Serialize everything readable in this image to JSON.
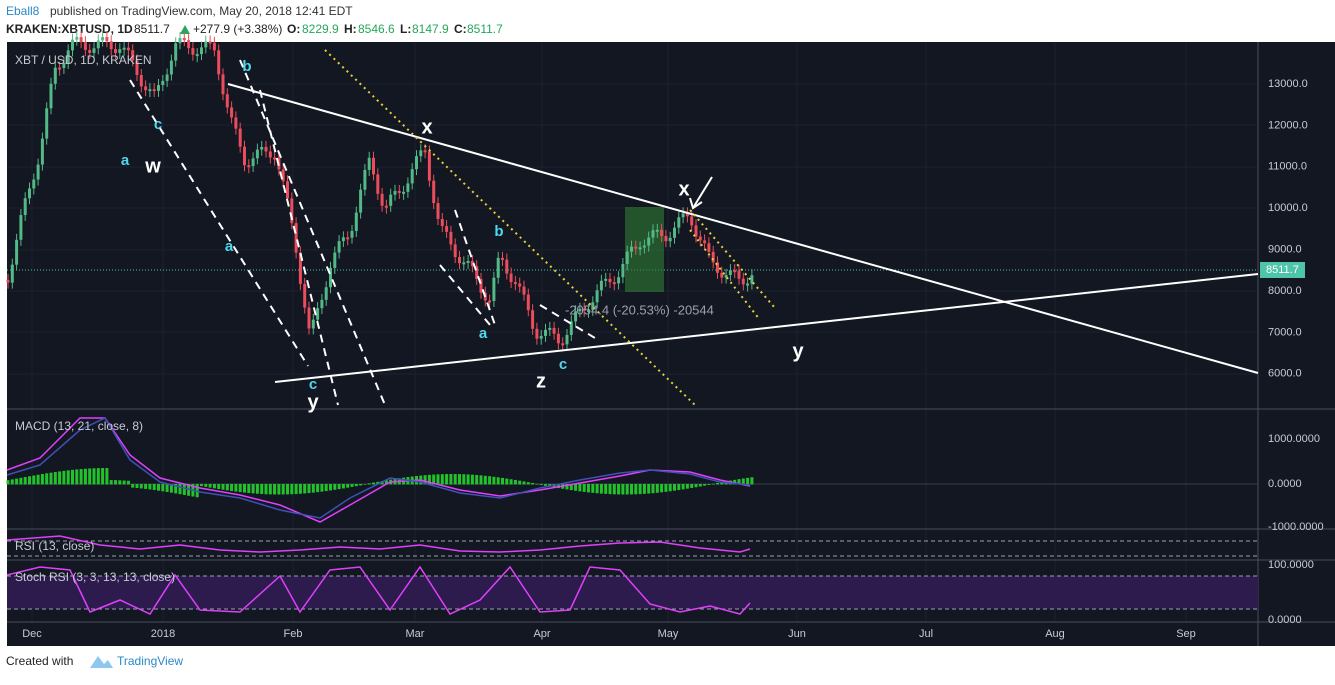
{
  "header": {
    "publisher": "Eball8",
    "published": "published on TradingView.com, May 20, 2018 12:41 EDT"
  },
  "symbol_bar": {
    "symbol": "KRAKEN:XBTUSD, 1D",
    "last": "8511.7",
    "change": "+277.9 (+3.38%)",
    "open_label": "O:",
    "open": "8229.9",
    "high_label": "H:",
    "high": "8546.6",
    "low_label": "L:",
    "low": "8147.9",
    "close_label": "C:",
    "close": "8511.7"
  },
  "main_pane": {
    "legend": "XBT / USD, 1D, KRAKEN",
    "price_ticks": [
      "13000.0",
      "12000.0",
      "11000.0",
      "10000.0",
      "9000.0",
      "8000.0",
      "7000.0",
      "6000.0"
    ],
    "last_price": "8511.7",
    "measure": "-2054.4 (-20.53%) -20544",
    "wave_labels": [
      "a",
      "w",
      "b",
      "c",
      "a",
      "c",
      "y",
      "x",
      "b",
      "a",
      "z",
      "c",
      "x",
      "y"
    ]
  },
  "macd_pane": {
    "legend": "MACD (13, 21, close, 8)",
    "ticks": [
      "1000.0000",
      "0.0000",
      "-1000.0000"
    ]
  },
  "rsi_pane": {
    "legend": "RSI (13, close)"
  },
  "stoch_pane": {
    "legend": "Stoch RSI (3, 3, 13, 13, close)",
    "ticks": [
      "100.0000",
      "0.0000"
    ]
  },
  "time_axis": {
    "labels": [
      "Dec",
      "2018",
      "Feb",
      "Mar",
      "Apr",
      "May",
      "Jun",
      "Jul",
      "Aug",
      "Sep"
    ]
  },
  "footer": {
    "created_with": "Created with",
    "brand": "TradingView"
  }
}
